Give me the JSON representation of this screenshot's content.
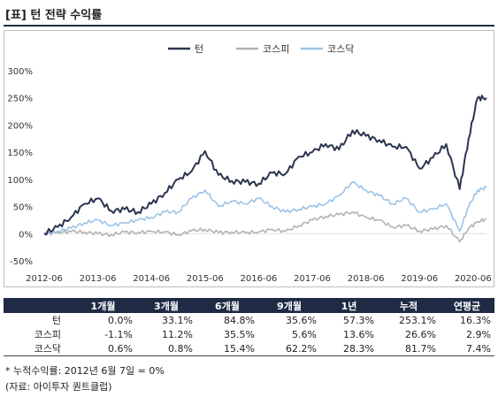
{
  "title": "[표] 턴 전략 수익률",
  "chart_data": {
    "type": "line",
    "title": "",
    "xlabel": "",
    "ylabel": "",
    "x_ticks": [
      "2012-06",
      "2013-06",
      "2014-06",
      "2015-06",
      "2016-06",
      "2017-06",
      "2018-06",
      "2019-06",
      "2020-06"
    ],
    "y_ticks": [
      "300%",
      "250%",
      "200%",
      "150%",
      "100%",
      "50%",
      "0%",
      "-50%"
    ],
    "ylim": [
      -50,
      300
    ],
    "xlim": [
      "2012-06",
      "2020-09"
    ],
    "legend_position": "top-center",
    "grid": false,
    "x": [
      "2012-06",
      "2012-09",
      "2012-12",
      "2013-03",
      "2013-06",
      "2013-09",
      "2013-12",
      "2014-03",
      "2014-06",
      "2014-09",
      "2014-12",
      "2015-03",
      "2015-06",
      "2015-09",
      "2015-12",
      "2016-03",
      "2016-06",
      "2016-09",
      "2016-12",
      "2017-03",
      "2017-06",
      "2017-09",
      "2017-12",
      "2018-03",
      "2018-06",
      "2018-09",
      "2018-12",
      "2019-03",
      "2019-06",
      "2019-09",
      "2019-12",
      "2020-03",
      "2020-05",
      "2020-07",
      "2020-09"
    ],
    "series": [
      {
        "name": "턴",
        "color": "#2b3550",
        "values": [
          0,
          12,
          30,
          55,
          65,
          42,
          45,
          40,
          55,
          75,
          100,
          115,
          152,
          108,
          97,
          95,
          92,
          112,
          110,
          142,
          150,
          165,
          155,
          190,
          180,
          172,
          160,
          160,
          120,
          140,
          165,
          82,
          175,
          250,
          250
        ]
      },
      {
        "name": "코스피",
        "color": "#b3b3b3",
        "values": [
          0,
          2,
          4,
          3,
          0,
          -2,
          3,
          2,
          4,
          3,
          -2,
          5,
          8,
          2,
          3,
          2,
          3,
          8,
          4,
          15,
          25,
          32,
          35,
          40,
          30,
          25,
          12,
          15,
          5,
          8,
          15,
          -15,
          10,
          22,
          27
        ]
      },
      {
        "name": "코스닥",
        "color": "#9cc3e6",
        "values": [
          0,
          5,
          10,
          20,
          25,
          15,
          20,
          25,
          30,
          40,
          40,
          65,
          80,
          50,
          60,
          55,
          65,
          50,
          40,
          45,
          50,
          55,
          70,
          95,
          80,
          70,
          55,
          65,
          40,
          45,
          55,
          5,
          50,
          80,
          85
        ]
      }
    ]
  },
  "table": {
    "headers": [
      "",
      "1개월",
      "3개월",
      "6개월",
      "9개월",
      "1년",
      "누적",
      "연평균"
    ],
    "rows": [
      {
        "label": "턴",
        "cells": [
          "0.0%",
          "33.1%",
          "84.8%",
          "35.6%",
          "57.3%",
          "253.1%",
          "16.3%"
        ]
      },
      {
        "label": "코스피",
        "cells": [
          "-1.1%",
          "11.2%",
          "35.5%",
          "5.6%",
          "13.6%",
          "26.6%",
          "2.9%"
        ]
      },
      {
        "label": "코스닥",
        "cells": [
          "0.6%",
          "0.8%",
          "15.4%",
          "62.2%",
          "28.3%",
          "81.7%",
          "7.4%"
        ]
      }
    ]
  },
  "notes": {
    "footnote": "* 누적수익률: 2012년 6월 7일 = 0%",
    "source": "(자료: 아이투자 퀀트클럽)"
  }
}
